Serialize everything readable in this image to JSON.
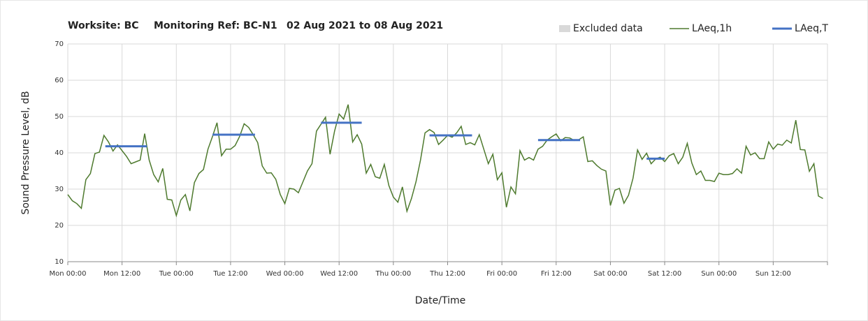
{
  "chart_data": {
    "type": "line",
    "title": [
      "Worksite: BC",
      "Monitoring Ref: BC-N1",
      "02 Aug 2021 to 08 Aug 2021"
    ],
    "xlabel": "Date/Time",
    "ylabel": "Sound Pressure Level, dB",
    "xlim": [
      0,
      168
    ],
    "ylim": [
      10,
      70
    ],
    "yticks": [
      10,
      20,
      30,
      40,
      50,
      60,
      70
    ],
    "xticks": [
      {
        "value": 0,
        "label": "Mon 00:00"
      },
      {
        "value": 12,
        "label": "Mon 12:00"
      },
      {
        "value": 24,
        "label": "Tue 00:00"
      },
      {
        "value": 36,
        "label": "Tue 12:00"
      },
      {
        "value": 48,
        "label": "Wed 00:00"
      },
      {
        "value": 60,
        "label": "Wed 12:00"
      },
      {
        "value": 72,
        "label": "Thu 00:00"
      },
      {
        "value": 84,
        "label": "Thu 12:00"
      },
      {
        "value": 96,
        "label": "Fri 00:00"
      },
      {
        "value": 108,
        "label": "Fri 12:00"
      },
      {
        "value": 120,
        "label": "Sat 00:00"
      },
      {
        "value": 132,
        "label": "Sat 12:00"
      },
      {
        "value": 144,
        "label": "Sun 00:00"
      },
      {
        "value": 156,
        "label": "Sun 12:00"
      },
      168
    ],
    "grid": true,
    "excluded": {
      "name": "Excluded data",
      "color": "#d9d9d9"
    },
    "x": [
      0,
      1,
      2,
      3,
      4,
      5,
      6,
      7,
      8,
      9,
      10,
      11,
      12,
      13,
      14,
      15,
      16,
      17,
      18,
      19,
      20,
      21,
      22,
      23,
      24,
      25,
      26,
      27,
      28,
      29,
      30,
      31,
      32,
      33,
      34,
      35,
      36,
      37,
      38,
      39,
      40,
      41,
      42,
      43,
      44,
      45,
      46,
      47,
      48,
      49,
      50,
      51,
      52,
      53,
      54,
      55,
      56,
      57,
      58,
      59,
      60,
      61,
      62,
      63,
      64,
      65,
      66,
      67,
      68,
      69,
      70,
      71,
      72,
      73,
      74,
      75,
      76,
      77,
      78,
      79,
      80,
      81,
      82,
      83,
      84,
      85,
      86,
      87,
      88,
      89,
      90,
      91,
      92,
      93,
      94,
      95,
      96,
      97,
      98,
      99,
      100,
      101,
      102,
      103,
      104,
      105,
      106,
      107,
      108,
      109,
      110,
      111,
      112,
      113,
      114,
      115,
      116,
      117,
      118,
      119,
      120,
      121,
      122,
      123,
      124,
      125,
      126,
      127,
      128,
      129,
      130,
      131,
      132,
      133,
      134,
      135,
      136,
      137,
      138,
      139,
      140,
      141,
      142,
      143,
      144,
      145,
      146,
      147,
      148,
      149,
      150,
      151,
      152,
      153,
      154,
      155,
      156,
      157,
      158,
      159,
      160,
      161,
      162,
      163,
      164,
      165,
      166,
      167
    ],
    "series": [
      {
        "name": "LAeq,1h",
        "color": "#4e7a2e",
        "values": [
          28.5,
          26.8,
          26,
          24.7,
          32.6,
          34.3,
          39.8,
          40.2,
          44.8,
          43,
          40.5,
          42.2,
          40.6,
          39,
          37,
          37.5,
          38,
          45.3,
          38,
          34,
          32,
          35.7,
          27.2,
          27,
          22.7,
          27,
          28.5,
          24,
          31.8,
          34.3,
          35.4,
          41,
          44.5,
          48.3,
          39.2,
          41,
          41,
          42,
          44.5,
          48,
          47,
          45,
          42.8,
          36.4,
          34.4,
          34.5,
          32.7,
          28.5,
          26,
          30.2,
          30,
          29,
          32,
          35,
          37,
          46,
          47.9,
          49.8,
          39.6,
          46,
          50.7,
          49.3,
          53.3,
          43,
          45,
          42.4,
          34.4,
          36.8,
          33.4,
          33,
          36.8,
          31,
          27.8,
          26.4,
          30.6,
          23.9,
          27.4,
          32,
          38,
          45.5,
          46.4,
          45.6,
          42.3,
          43.5,
          44.8,
          44.3,
          45.5,
          47.3,
          42.3,
          42.8,
          42.2,
          45,
          41,
          37,
          39.6,
          32.6,
          34.5,
          25,
          30.6,
          28.7,
          40.6,
          38,
          38.7,
          38,
          41,
          41.8,
          43.5,
          44.4,
          45.2,
          43.3,
          44.2,
          44.1,
          43.4,
          43.6,
          44.4,
          37.6,
          37.8,
          36.5,
          35.5,
          35,
          25.5,
          29.7,
          30.2,
          26.1,
          28.3,
          33,
          40.8,
          38.2,
          39.9,
          37,
          38.3,
          38.8,
          37.6,
          39.2,
          39.8,
          37,
          38.8,
          42.6,
          37.2,
          34,
          35,
          32.4,
          32.4,
          32.1,
          34.4,
          34,
          34,
          34.3,
          35.6,
          34.4,
          41.8,
          39.4,
          40,
          38.4,
          38.4,
          43,
          41,
          42.4,
          42.1,
          43.5,
          42.7,
          49,
          40.9,
          40.8,
          34.9,
          37,
          28.1,
          27.4
        ]
      },
      {
        "name": "LAeq,T",
        "color": "#4472c4",
        "segments": [
          {
            "x": [
              8.3,
              17.5
            ],
            "value": 41.8
          },
          {
            "x": [
              32,
              41.4
            ],
            "value": 45
          },
          {
            "x": [
              56,
              65
            ],
            "value": 48.3
          },
          {
            "x": [
              80,
              89.4
            ],
            "value": 44.8
          },
          {
            "x": [
              104,
              113.3
            ],
            "value": 43.5
          },
          {
            "x": [
              128,
              132
            ],
            "value": 38.4
          }
        ]
      }
    ]
  }
}
